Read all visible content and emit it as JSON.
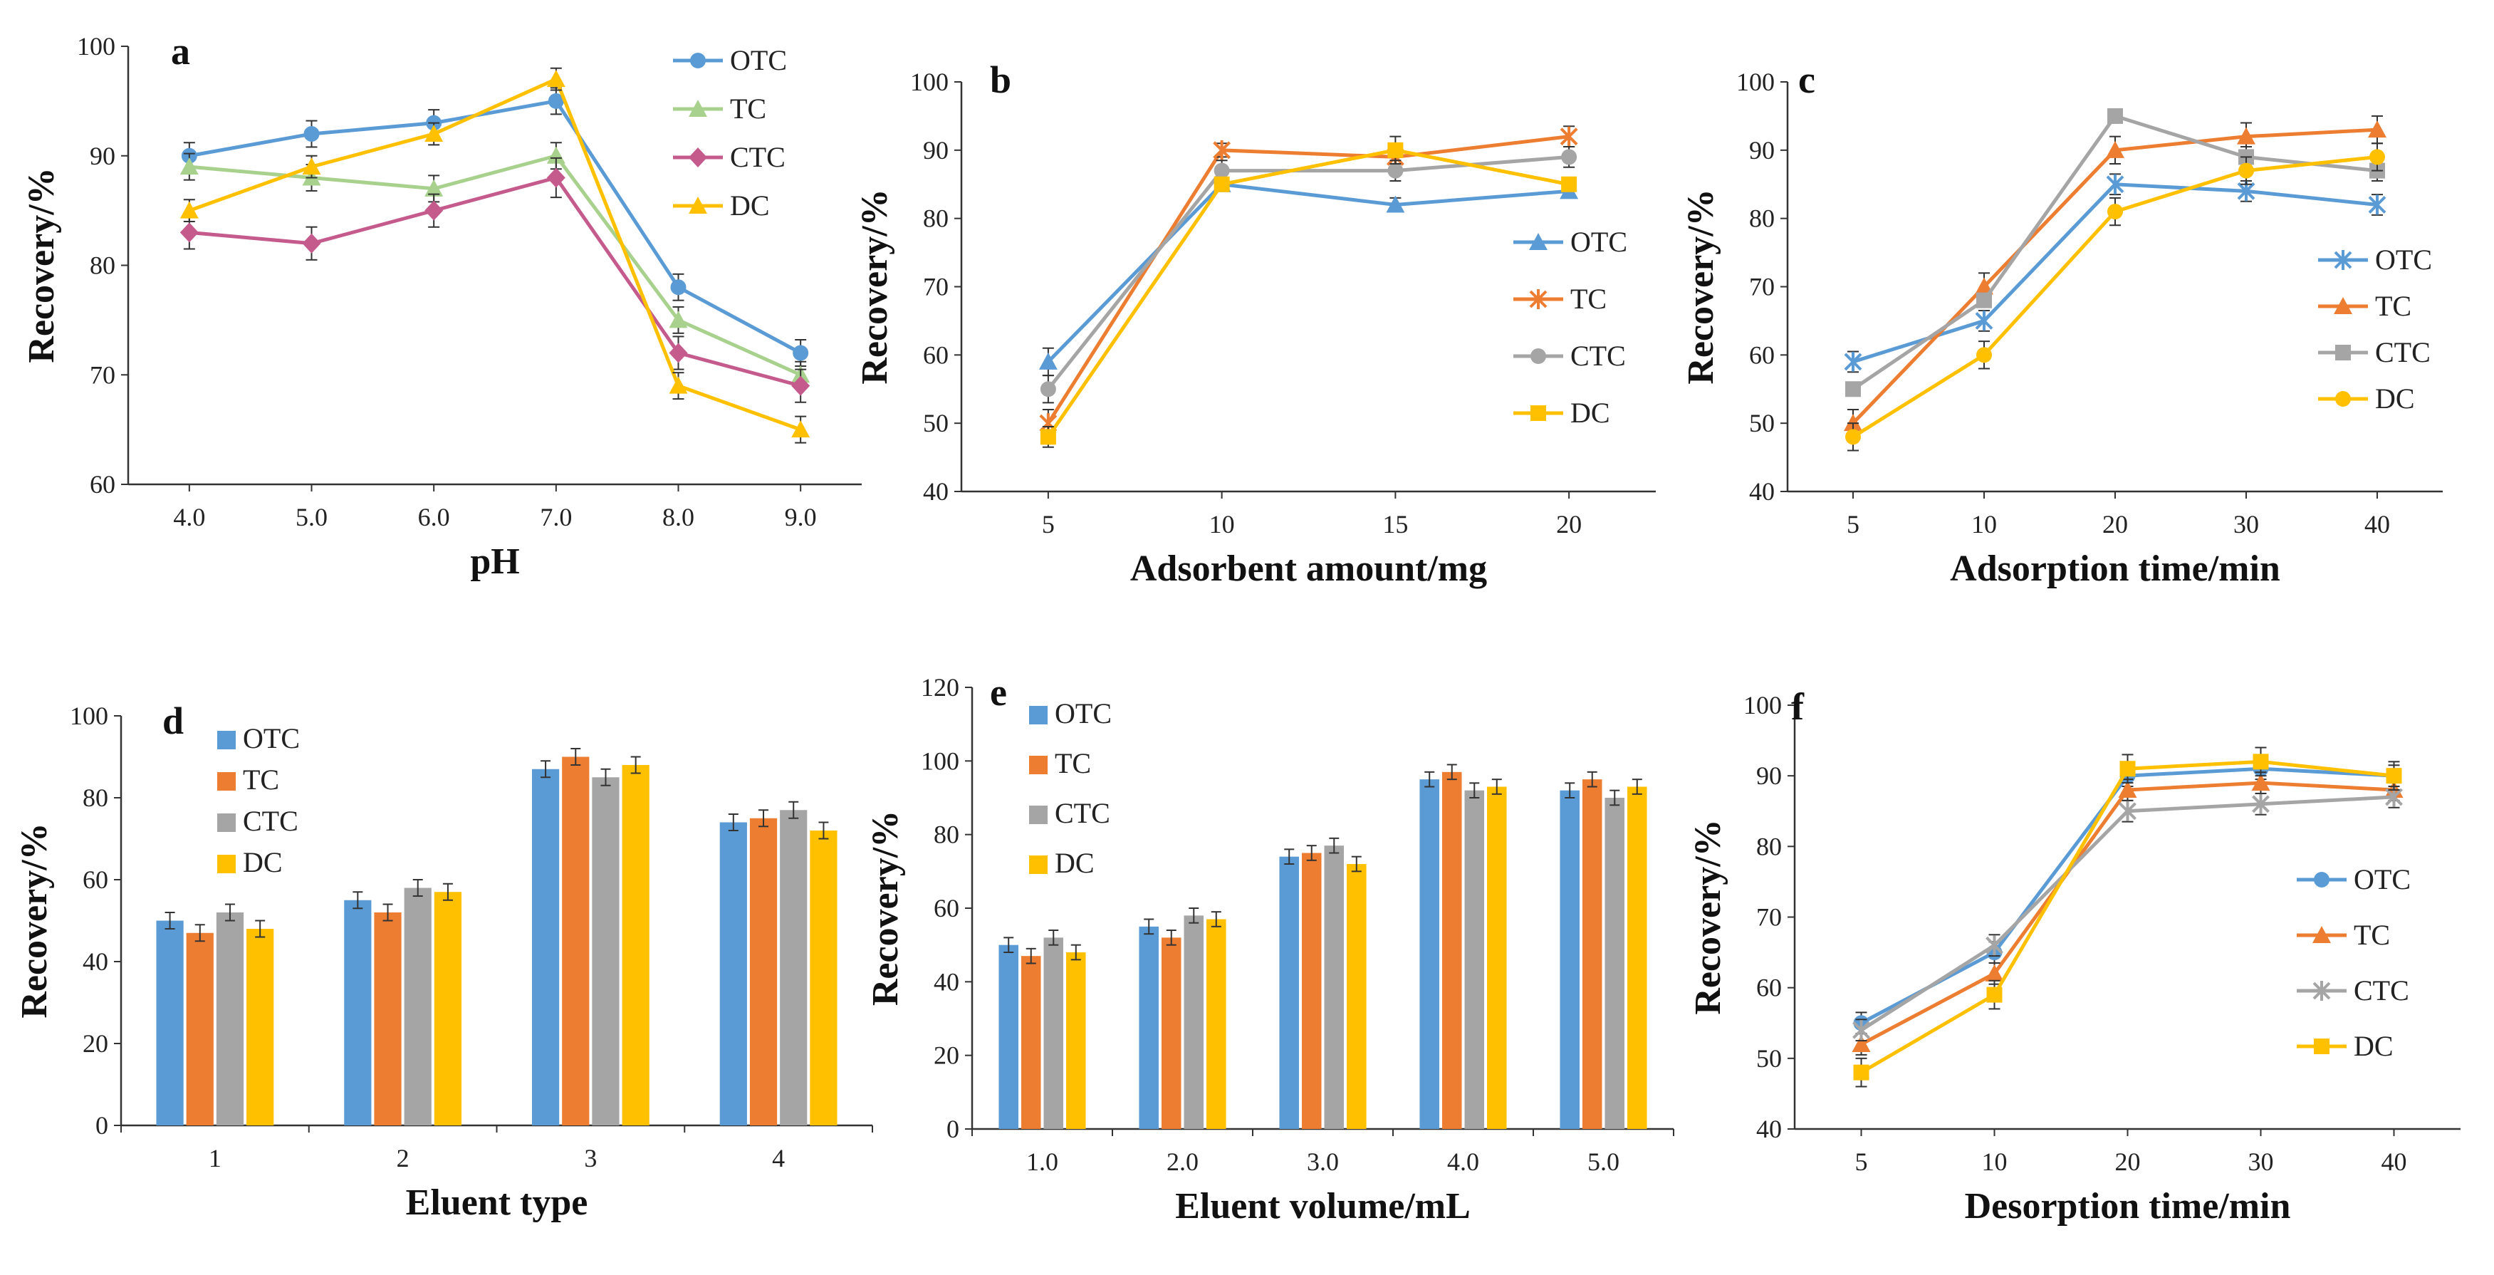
{
  "chart_data": [
    {
      "id": "a",
      "type": "line",
      "panel_label": "a",
      "categories": [
        "4.0",
        "5.0",
        "6.0",
        "7.0",
        "8.0",
        "9.0"
      ],
      "xlabel": "pH",
      "ylabel": "Recovery/%",
      "ylim": [
        60,
        100
      ],
      "yticks": [
        60,
        70,
        80,
        90,
        100
      ],
      "legend_position": "top-right",
      "series": [
        {
          "name": "OTC",
          "color": "#5B9BD5",
          "marker": "circle",
          "values": [
            90,
            92,
            93,
            95,
            78,
            72
          ],
          "errors": [
            1.2,
            1.2,
            1.2,
            1.2,
            1.2,
            1.2
          ]
        },
        {
          "name": "TC",
          "color": "#A9D18E",
          "marker": "triangle",
          "values": [
            89,
            88,
            87,
            90,
            75,
            70
          ],
          "errors": [
            1.2,
            1.2,
            1.2,
            1.2,
            1.2,
            1.2
          ]
        },
        {
          "name": "CTC",
          "color": "#C55A8C",
          "marker": "diamond",
          "values": [
            83,
            82,
            85,
            88,
            72,
            69
          ],
          "errors": [
            1.5,
            1.5,
            1.5,
            1.8,
            1.5,
            1.5
          ]
        },
        {
          "name": "DC",
          "color": "#FFC000",
          "marker": "triangle",
          "values": [
            85,
            89,
            92,
            97,
            69,
            65
          ],
          "errors": [
            1.0,
            1.0,
            1.0,
            1.0,
            1.2,
            1.2
          ]
        }
      ]
    },
    {
      "id": "b",
      "type": "line",
      "panel_label": "b",
      "categories": [
        "5",
        "10",
        "15",
        "20"
      ],
      "xlabel": "Adsorbent amount/mg",
      "ylabel": "Recovery/%",
      "ylim": [
        40,
        100
      ],
      "yticks": [
        40,
        50,
        60,
        70,
        80,
        90,
        100
      ],
      "legend_position": "right",
      "series": [
        {
          "name": "OTC",
          "color": "#5B9BD5",
          "marker": "triangle",
          "values": [
            59,
            85,
            82,
            84
          ],
          "errors": [
            2,
            1,
            1,
            1
          ]
        },
        {
          "name": "TC",
          "color": "#ED7D31",
          "marker": "star",
          "values": [
            50,
            90,
            89,
            92
          ],
          "errors": [
            2,
            1,
            1,
            1.5
          ]
        },
        {
          "name": "CTC",
          "color": "#A5A5A5",
          "marker": "circle",
          "values": [
            55,
            87,
            87,
            89
          ],
          "errors": [
            2,
            1.5,
            1.5,
            1.5
          ]
        },
        {
          "name": "DC",
          "color": "#FFC000",
          "marker": "square",
          "values": [
            48,
            85,
            90,
            85
          ],
          "errors": [
            1.5,
            1,
            2,
            1
          ]
        }
      ]
    },
    {
      "id": "c",
      "type": "line",
      "panel_label": "c",
      "categories": [
        "5",
        "10",
        "20",
        "30",
        "40"
      ],
      "xlabel": "Adsorption time/min",
      "ylabel": "Recovery/%",
      "ylim": [
        40,
        100
      ],
      "yticks": [
        40,
        50,
        60,
        70,
        80,
        90,
        100
      ],
      "legend_position": "right",
      "series": [
        {
          "name": "OTC",
          "color": "#5B9BD5",
          "marker": "star",
          "values": [
            59,
            65,
            85,
            84,
            82
          ],
          "errors": [
            1.5,
            1.5,
            1.5,
            1.5,
            1.5
          ]
        },
        {
          "name": "TC",
          "color": "#ED7D31",
          "marker": "triangle",
          "values": [
            50,
            70,
            90,
            92,
            93
          ],
          "errors": [
            2,
            2,
            2,
            2,
            2
          ]
        },
        {
          "name": "CTC",
          "color": "#A5A5A5",
          "marker": "square",
          "values": [
            55,
            68,
            95,
            89,
            87
          ],
          "errors": [
            1,
            1,
            1,
            1.5,
            1.5
          ]
        },
        {
          "name": "DC",
          "color": "#FFC000",
          "marker": "circle",
          "values": [
            48,
            60,
            81,
            87,
            89
          ],
          "errors": [
            2,
            2,
            2,
            2,
            2
          ]
        }
      ]
    },
    {
      "id": "d",
      "type": "bar",
      "panel_label": "d",
      "categories": [
        "1",
        "2",
        "3",
        "4"
      ],
      "xlabel": "Eluent type",
      "ylabel": "Recovery/%",
      "ylim": [
        0,
        100
      ],
      "yticks": [
        0,
        20,
        40,
        60,
        80,
        100
      ],
      "legend_position": "top-left",
      "series": [
        {
          "name": "OTC",
          "color": "#5B9BD5",
          "values": [
            50,
            55,
            87,
            74
          ],
          "errors": [
            2,
            2,
            2,
            2
          ]
        },
        {
          "name": "TC",
          "color": "#ED7D31",
          "values": [
            47,
            52,
            90,
            75
          ],
          "errors": [
            2,
            2,
            2,
            2
          ]
        },
        {
          "name": "CTC",
          "color": "#A5A5A5",
          "values": [
            52,
            58,
            85,
            77
          ],
          "errors": [
            2,
            2,
            2,
            2
          ]
        },
        {
          "name": "DC",
          "color": "#FFC000",
          "values": [
            48,
            57,
            88,
            72
          ],
          "errors": [
            2,
            2,
            2,
            2
          ]
        }
      ]
    },
    {
      "id": "e",
      "type": "bar",
      "panel_label": "e",
      "categories": [
        "1.0",
        "2.0",
        "3.0",
        "4.0",
        "5.0"
      ],
      "xlabel": "Eluent volume/mL",
      "ylabel": "Recovery/%",
      "ylim": [
        0,
        120
      ],
      "yticks": [
        0,
        20,
        40,
        60,
        80,
        100,
        120
      ],
      "legend_position": "top-left",
      "series": [
        {
          "name": "OTC",
          "color": "#5B9BD5",
          "values": [
            50,
            55,
            74,
            95,
            92
          ],
          "errors": [
            2,
            2,
            2,
            2,
            2
          ]
        },
        {
          "name": "TC",
          "color": "#ED7D31",
          "values": [
            47,
            52,
            75,
            97,
            95
          ],
          "errors": [
            2,
            2,
            2,
            2,
            2
          ]
        },
        {
          "name": "CTC",
          "color": "#A5A5A5",
          "values": [
            52,
            58,
            77,
            92,
            90
          ],
          "errors": [
            2,
            2,
            2,
            2,
            2
          ]
        },
        {
          "name": "DC",
          "color": "#FFC000",
          "values": [
            48,
            57,
            72,
            93,
            93
          ],
          "errors": [
            2,
            2,
            2,
            2,
            2
          ]
        }
      ]
    },
    {
      "id": "f",
      "type": "line",
      "panel_label": "f",
      "categories": [
        "5",
        "10",
        "20",
        "30",
        "40"
      ],
      "xlabel": "Desorption time/min",
      "ylabel": "Recovery/%",
      "ylim": [
        40,
        100
      ],
      "yticks": [
        40,
        50,
        60,
        70,
        80,
        90,
        100
      ],
      "legend_position": "right",
      "series": [
        {
          "name": "OTC",
          "color": "#5B9BD5",
          "marker": "circle",
          "values": [
            55,
            65,
            90,
            91,
            90
          ],
          "errors": [
            1.5,
            1.5,
            1.5,
            1.5,
            1.5
          ]
        },
        {
          "name": "TC",
          "color": "#ED7D31",
          "marker": "triangle",
          "values": [
            52,
            62,
            88,
            89,
            88
          ],
          "errors": [
            1.5,
            1.5,
            1.5,
            1.5,
            1.5
          ]
        },
        {
          "name": "CTC",
          "color": "#A5A5A5",
          "marker": "star",
          "values": [
            54,
            66,
            85,
            86,
            87
          ],
          "errors": [
            1.5,
            1.5,
            1.5,
            1.5,
            1.5
          ]
        },
        {
          "name": "DC",
          "color": "#FFC000",
          "marker": "square",
          "values": [
            48,
            59,
            91,
            92,
            90
          ],
          "errors": [
            2,
            2,
            2,
            2,
            2
          ]
        }
      ]
    }
  ]
}
